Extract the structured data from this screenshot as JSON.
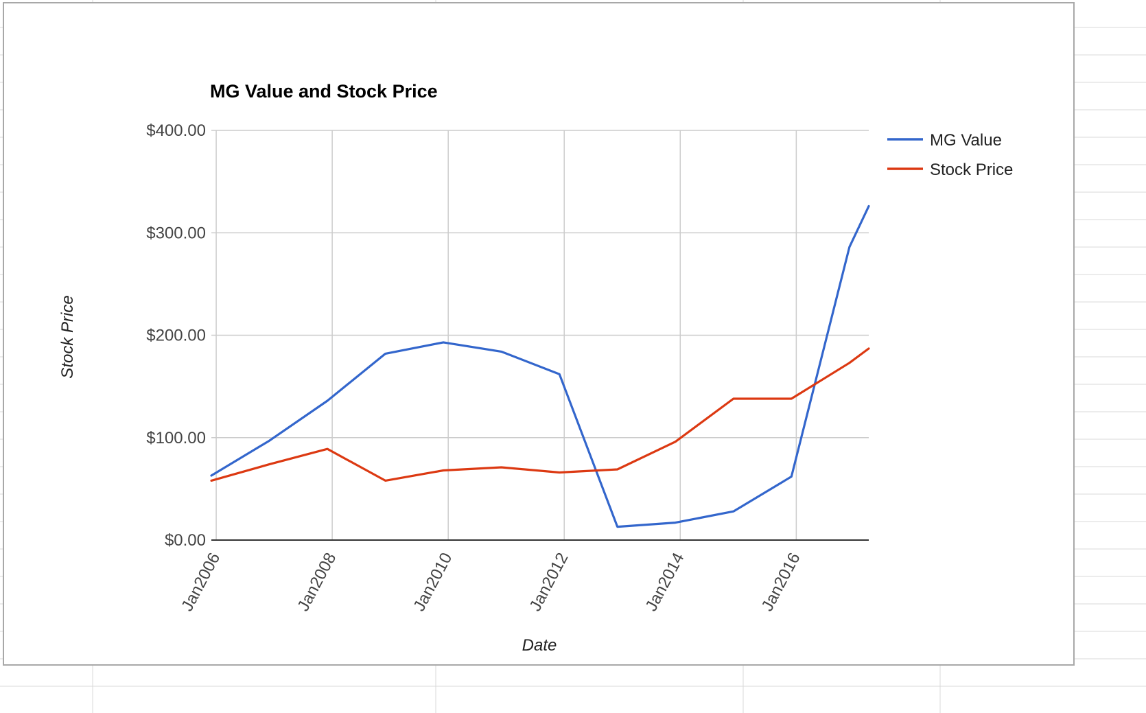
{
  "chart_data": {
    "type": "line",
    "title": "MG Value and Stock Price",
    "xlabel": "Date",
    "ylabel": "Stock Price",
    "x_tick_labels": [
      "Jan2006",
      "Jan2008",
      "Jan2010",
      "Jan2012",
      "Jan2014",
      "Jan2016"
    ],
    "y_tick_labels": [
      "$0.00",
      "$100.00",
      "$200.00",
      "$300.00",
      "$400.00"
    ],
    "y_ticks": [
      0,
      100,
      200,
      300,
      400
    ],
    "ylim": [
      0,
      400
    ],
    "xlim": [
      "2005-12",
      "2017-04"
    ],
    "grid": true,
    "legend_position": "right",
    "x": [
      "2005-12",
      "2006-12",
      "2007-12",
      "2008-12",
      "2009-12",
      "2010-12",
      "2011-12",
      "2012-12",
      "2013-12",
      "2014-12",
      "2015-12",
      "2016-12",
      "2017-04"
    ],
    "series": [
      {
        "name": "MG Value",
        "color": "#3366cc",
        "values": [
          63,
          97,
          136,
          182,
          193,
          184,
          162,
          13,
          17,
          28,
          62,
          286,
          326
        ]
      },
      {
        "name": "Stock Price",
        "color": "#dc3912",
        "values": [
          58,
          74,
          89,
          58,
          68,
          71,
          66,
          69,
          96,
          138,
          138,
          173,
          187
        ]
      }
    ]
  }
}
